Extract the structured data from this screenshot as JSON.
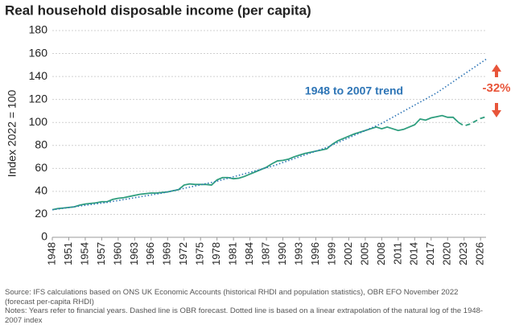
{
  "chart_data": {
    "type": "line",
    "title": "Real household disposable income (per capita)",
    "ylabel": "Index 2022 = 100",
    "xlim": [
      1948,
      2027
    ],
    "ylim": [
      0,
      180
    ],
    "xticks": [
      1948,
      1951,
      1954,
      1957,
      1960,
      1963,
      1966,
      1969,
      1972,
      1975,
      1978,
      1981,
      1984,
      1987,
      1990,
      1993,
      1996,
      1999,
      2002,
      2005,
      2008,
      2011,
      2014,
      2017,
      2020,
      2023,
      2026
    ],
    "yticks": [
      0,
      20,
      40,
      60,
      80,
      100,
      120,
      140,
      160,
      180
    ],
    "grid": true,
    "series": [
      {
        "color": "#2f9e7e",
        "style": "solid",
        "x": [
          1948,
          1949,
          1950,
          1951,
          1952,
          1953,
          1954,
          1955,
          1956,
          1957,
          1958,
          1959,
          1960,
          1961,
          1962,
          1963,
          1964,
          1965,
          1966,
          1967,
          1968,
          1969,
          1970,
          1971,
          1972,
          1973,
          1974,
          1975,
          1976,
          1977,
          1978,
          1979,
          1980,
          1981,
          1982,
          1983,
          1984,
          1985,
          1986,
          1987,
          1988,
          1989,
          1990,
          1991,
          1992,
          1993,
          1994,
          1995,
          1996,
          1997,
          1998,
          1999,
          2000,
          2001,
          2002,
          2003,
          2004,
          2005,
          2006,
          2007,
          2008,
          2009,
          2010,
          2011,
          2012,
          2013,
          2014,
          2015,
          2016,
          2017,
          2018,
          2019,
          2020,
          2021,
          2022
        ],
        "values": [
          24,
          25,
          25.5,
          26,
          26.5,
          28,
          29,
          29.5,
          30,
          31,
          31,
          33,
          34,
          34.5,
          35.5,
          36.5,
          37.5,
          38,
          38.5,
          38.5,
          39,
          39.5,
          40.5,
          41.5,
          45.5,
          46.5,
          46,
          46,
          46,
          45.5,
          50,
          52,
          52,
          51,
          51.5,
          53,
          55,
          57,
          59,
          61,
          64,
          66.5,
          67,
          68,
          70,
          71.5,
          73,
          74,
          75,
          76,
          77,
          81,
          84,
          86,
          88,
          90,
          91.5,
          93,
          94.5,
          96,
          94.5,
          96,
          94.5,
          93,
          94,
          96,
          98,
          103,
          102,
          104,
          105,
          106,
          104.5,
          104.5,
          100
        ]
      },
      {
        "color": "#2f9e7e",
        "style": "dashed",
        "x": [
          2022,
          2023,
          2024,
          2025,
          2026,
          2027
        ],
        "values": [
          100,
          97,
          98.5,
          101,
          103.5,
          105
        ]
      },
      {
        "color": "#2e75b6",
        "style": "dotted",
        "x": [
          1948,
          1958,
          1968,
          1978,
          1988,
          1998,
          2008,
          2018,
          2027
        ],
        "values": [
          24,
          30.4,
          38.5,
          48.8,
          61.8,
          78.3,
          99.2,
          125.7,
          155
        ]
      }
    ],
    "annotations": [
      {
        "text": "1948 to 2007 trend",
        "color": "#2e75b6"
      },
      {
        "text": "-32%",
        "color": "#e8553a"
      }
    ],
    "notes": [
      "Source: IFS calculations based on ONS UK Economic Accounts (historical RHDI and population statistics), OBR EFO November 2022 (forecast per-capita RHDI)",
      "Notes: Years refer to financial years. Dashed line is OBR forecast. Dotted line is based on a linear extrapolation of the natural log of the 1948-2007 index"
    ]
  }
}
